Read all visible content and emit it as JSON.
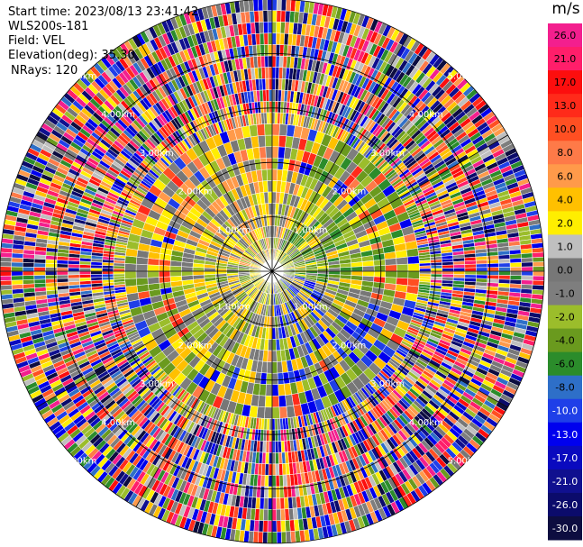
{
  "header": {
    "start_time": "Start time: 2023/08/13 23:41:42",
    "site": "WLS200s-181",
    "field": "Field: VEL",
    "elevation": "Elevation(deg): 35.30",
    "nrays": "NRays: 120"
  },
  "colorbar": {
    "unit": "m/s",
    "ticks": [
      "26.0",
      "21.0",
      "17.0",
      "13.0",
      "10.0",
      "8.0",
      "6.0",
      "4.0",
      "2.0",
      "1.0",
      "0.0",
      "-1.0",
      "-2.0",
      "-4.0",
      "-6.0",
      "-8.0",
      "-10.0",
      "-13.0",
      "-17.0",
      "-21.0",
      "-26.0",
      "-30.0"
    ],
    "colors": [
      "#f31f8e",
      "#ff1e6a",
      "#fc0e0e",
      "#ff2a1a",
      "#ff4f22",
      "#fe7a48",
      "#ff9a4a",
      "#ffc000",
      "#ffee00",
      "#bfbfbf",
      "#777777",
      "#7e7e7e",
      "#9bbd2b",
      "#6a9a1e",
      "#2b8c2b",
      "#2e6fc8",
      "#1f3fe8",
      "#0000ee",
      "#0a0abf",
      "#10108f",
      "#0b0b6b",
      "#0d0d40"
    ]
  },
  "chart_data": {
    "type": "heatmap",
    "projection": "PPI polar",
    "field": "VEL",
    "units": "m/s",
    "elevation_deg": 35.3,
    "n_rays": 120,
    "range_rings_km": [
      1.0,
      2.0,
      3.0,
      4.0,
      5.0
    ],
    "ring_labels": [
      "1.00km",
      "2.00km",
      "3.00km",
      "4.00km",
      "5.00km"
    ],
    "color_scale_ticks": [
      26.0,
      21.0,
      17.0,
      13.0,
      10.0,
      8.0,
      6.0,
      4.0,
      2.0,
      1.0,
      0.0,
      -1.0,
      -2.0,
      -4.0,
      -6.0,
      -8.0,
      -10.0,
      -13.0,
      -17.0,
      -21.0,
      -26.0,
      -30.0
    ],
    "max_range_km": 5.0
  }
}
